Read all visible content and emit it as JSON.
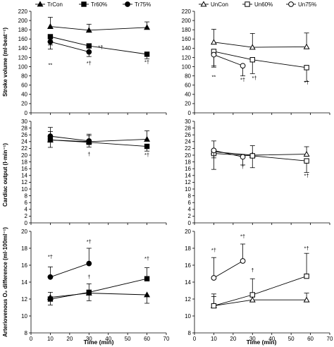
{
  "figure": {
    "x_label": "Time (min)",
    "y_labels": {
      "sv": "Stroke volume (ml·beat⁻¹)",
      "co": "Cardiac output (l·min⁻¹)",
      "avo2": "Arteriovenous O₂ difference (ml·100ml⁻¹)"
    }
  },
  "chart_data": [
    {
      "id": "tr-sv",
      "type": "line",
      "row": 0,
      "col": 0,
      "xlim": [
        0,
        70
      ],
      "xticks": [
        0,
        10,
        20,
        30,
        40,
        50,
        60,
        70
      ],
      "ylim": [
        0,
        220
      ],
      "yticks": [
        0,
        20,
        40,
        60,
        80,
        100,
        120,
        140,
        160,
        180,
        200,
        220
      ],
      "legend": true,
      "series": [
        {
          "name": "TrCon",
          "marker": "triangle-filled",
          "x": [
            10,
            30,
            60
          ],
          "y": [
            187,
            179,
            185
          ],
          "err": [
            20,
            13,
            12
          ],
          "err_dir": "up"
        },
        {
          "name": "Tr60%",
          "marker": "square-filled",
          "x": [
            10,
            30,
            60
          ],
          "y": [
            165,
            145,
            127
          ],
          "err": [
            18,
            12,
            10
          ],
          "err_dir": "down"
        },
        {
          "name": "Tr75%",
          "marker": "circle-filled",
          "x": [
            10,
            30
          ],
          "y": [
            154,
            132
          ],
          "err": [
            16,
            10
          ],
          "err_dir": "down"
        }
      ],
      "annotations": [
        {
          "text": "**",
          "x": 10,
          "y": 100
        },
        {
          "text": "*†",
          "x": 36,
          "y": 138
        },
        {
          "text": "*†",
          "x": 30,
          "y": 104
        },
        {
          "text": "*†",
          "x": 60,
          "y": 106
        }
      ]
    },
    {
      "id": "un-sv",
      "type": "line",
      "row": 0,
      "col": 1,
      "xlim": [
        0,
        70
      ],
      "xticks": [
        0,
        10,
        20,
        30,
        40,
        50,
        60,
        70
      ],
      "ylim": [
        0,
        220
      ],
      "yticks": [
        0,
        20,
        40,
        60,
        80,
        100,
        120,
        140,
        160,
        180,
        200,
        220
      ],
      "legend": true,
      "series": [
        {
          "name": "UnCon",
          "marker": "triangle-open",
          "x": [
            10,
            30,
            58
          ],
          "y": [
            153,
            142,
            143
          ],
          "err": [
            28,
            30,
            30
          ],
          "err_dir": "up"
        },
        {
          "name": "Un60%",
          "marker": "square-open",
          "x": [
            10,
            30,
            58
          ],
          "y": [
            133,
            115,
            98
          ],
          "err": [
            34,
            30,
            30
          ],
          "err_dir": "down"
        },
        {
          "name": "Un75%",
          "marker": "circle-open",
          "x": [
            10,
            25
          ],
          "y": [
            126,
            102
          ],
          "err": [
            24,
            22
          ],
          "err_dir": "down"
        }
      ],
      "annotations": [
        {
          "text": "**",
          "x": 10,
          "y": 74
        },
        {
          "text": "*†",
          "x": 25,
          "y": 68
        },
        {
          "text": "*†",
          "x": 31,
          "y": 72
        },
        {
          "text": "*†",
          "x": 58,
          "y": 62
        }
      ]
    },
    {
      "id": "tr-co",
      "type": "line",
      "row": 1,
      "col": 0,
      "xlim": [
        0,
        70
      ],
      "xticks": [
        0,
        10,
        20,
        30,
        40,
        50,
        60,
        70
      ],
      "ylim": [
        0,
        30
      ],
      "yticks": [
        0,
        2,
        4,
        6,
        8,
        10,
        12,
        14,
        16,
        18,
        20,
        22,
        24,
        26,
        28,
        30
      ],
      "legend": false,
      "series": [
        {
          "name": "TrCon",
          "marker": "triangle-filled",
          "x": [
            10,
            30,
            60
          ],
          "y": [
            24.5,
            24.0,
            24.7
          ],
          "err": [
            2.5,
            1.8,
            2.5
          ],
          "err_dir": "up"
        },
        {
          "name": "Tr60%",
          "marker": "square-filled",
          "x": [
            10,
            30,
            60
          ],
          "y": [
            24.5,
            23.8,
            22.6
          ],
          "err": [
            2.2,
            1.4,
            1.4
          ],
          "err_dir": "down"
        },
        {
          "name": "Tr75%",
          "marker": "circle-filled",
          "x": [
            10,
            30
          ],
          "y": [
            25.6,
            24.2
          ],
          "err": [
            2.6,
            2.0
          ],
          "err_dir": "up"
        }
      ],
      "annotations": [
        {
          "text": "†",
          "x": 30,
          "y": 19.8
        },
        {
          "text": "*†",
          "x": 60,
          "y": 19.6
        }
      ]
    },
    {
      "id": "un-co",
      "type": "line",
      "row": 1,
      "col": 1,
      "xlim": [
        0,
        70
      ],
      "xticks": [
        0,
        10,
        20,
        30,
        40,
        50,
        60,
        70
      ],
      "ylim": [
        0,
        30
      ],
      "yticks": [
        0,
        2,
        4,
        6,
        8,
        10,
        12,
        14,
        16,
        18,
        20,
        22,
        24,
        26,
        28,
        30
      ],
      "legend": false,
      "series": [
        {
          "name": "UnCon",
          "marker": "triangle-open",
          "x": [
            10,
            30,
            58
          ],
          "y": [
            21.0,
            20.0,
            20.3
          ],
          "err": [
            3.2,
            2.8,
            2.2
          ],
          "err_dir": "up"
        },
        {
          "name": "Un60%",
          "marker": "square-open",
          "x": [
            10,
            30,
            58
          ],
          "y": [
            20.5,
            19.8,
            18.3
          ],
          "err": [
            4.7,
            3.5,
            3.4
          ],
          "err_dir": "down"
        },
        {
          "name": "Un75%",
          "marker": "circle-open",
          "x": [
            10,
            25
          ],
          "y": [
            21.4,
            19.5
          ],
          "err": [
            2.2,
            2.4
          ],
          "err_dir": "down"
        }
      ],
      "annotations": [
        {
          "text": "†",
          "x": 25,
          "y": 16.0
        },
        {
          "text": "*†",
          "x": 58,
          "y": 13.4
        }
      ]
    },
    {
      "id": "tr-avo2",
      "type": "line",
      "row": 2,
      "col": 0,
      "xlim": [
        0,
        70
      ],
      "xticks": [
        0,
        10,
        20,
        30,
        40,
        50,
        60,
        70
      ],
      "ylim": [
        8,
        20
      ],
      "yticks": [
        8,
        10,
        12,
        14,
        16,
        18,
        20
      ],
      "legend": false,
      "series": [
        {
          "name": "TrCon",
          "marker": "triangle-filled",
          "x": [
            10,
            30,
            60
          ],
          "y": [
            12.2,
            12.7,
            12.5
          ],
          "err": [
            0.9,
            0.9,
            1.0
          ],
          "err_dir": "down"
        },
        {
          "name": "Tr60%",
          "marker": "square-filled",
          "x": [
            10,
            30,
            60
          ],
          "y": [
            12.0,
            12.8,
            14.4
          ],
          "err": [
            0.8,
            1.0,
            1.3
          ],
          "err_dir": "up"
        },
        {
          "name": "Tr75%",
          "marker": "circle-filled",
          "x": [
            10,
            30
          ],
          "y": [
            14.6,
            16.2
          ],
          "err": [
            1.2,
            1.8
          ],
          "err_dir": "up"
        }
      ],
      "annotations": [
        {
          "text": "*†",
          "x": 10,
          "y": 16.8
        },
        {
          "text": "*†",
          "x": 30,
          "y": 18.6
        },
        {
          "text": "†",
          "x": 30,
          "y": 14.4
        },
        {
          "text": "*†",
          "x": 60,
          "y": 16.6
        }
      ]
    },
    {
      "id": "un-avo2",
      "type": "line",
      "row": 2,
      "col": 1,
      "xlim": [
        0,
        70
      ],
      "xticks": [
        0,
        10,
        20,
        30,
        40,
        50,
        60,
        70
      ],
      "ylim": [
        8,
        20
      ],
      "yticks": [
        8,
        10,
        12,
        14,
        16,
        18,
        20
      ],
      "legend": false,
      "series": [
        {
          "name": "UnCon",
          "marker": "triangle-open",
          "x": [
            10,
            30,
            58
          ],
          "y": [
            11.2,
            11.9,
            11.9
          ],
          "err": [
            1.4,
            0.8,
            0.8
          ],
          "err_dir": "up"
        },
        {
          "name": "Un60%",
          "marker": "square-open",
          "x": [
            10,
            30,
            58
          ],
          "y": [
            11.2,
            12.5,
            14.7
          ],
          "err": [
            1.1,
            1.9,
            2.7
          ],
          "err_dir": "up"
        },
        {
          "name": "Un75%",
          "marker": "circle-open",
          "x": [
            10,
            25
          ],
          "y": [
            14.5,
            16.5
          ],
          "err": [
            2.4,
            2.0
          ],
          "err_dir": "up"
        }
      ],
      "annotations": [
        {
          "text": "*†",
          "x": 10,
          "y": 17.6
        },
        {
          "text": "*†",
          "x": 25,
          "y": 19.2
        },
        {
          "text": "†",
          "x": 30,
          "y": 15.2
        },
        {
          "text": "*†",
          "x": 58,
          "y": 17.8
        }
      ]
    }
  ]
}
